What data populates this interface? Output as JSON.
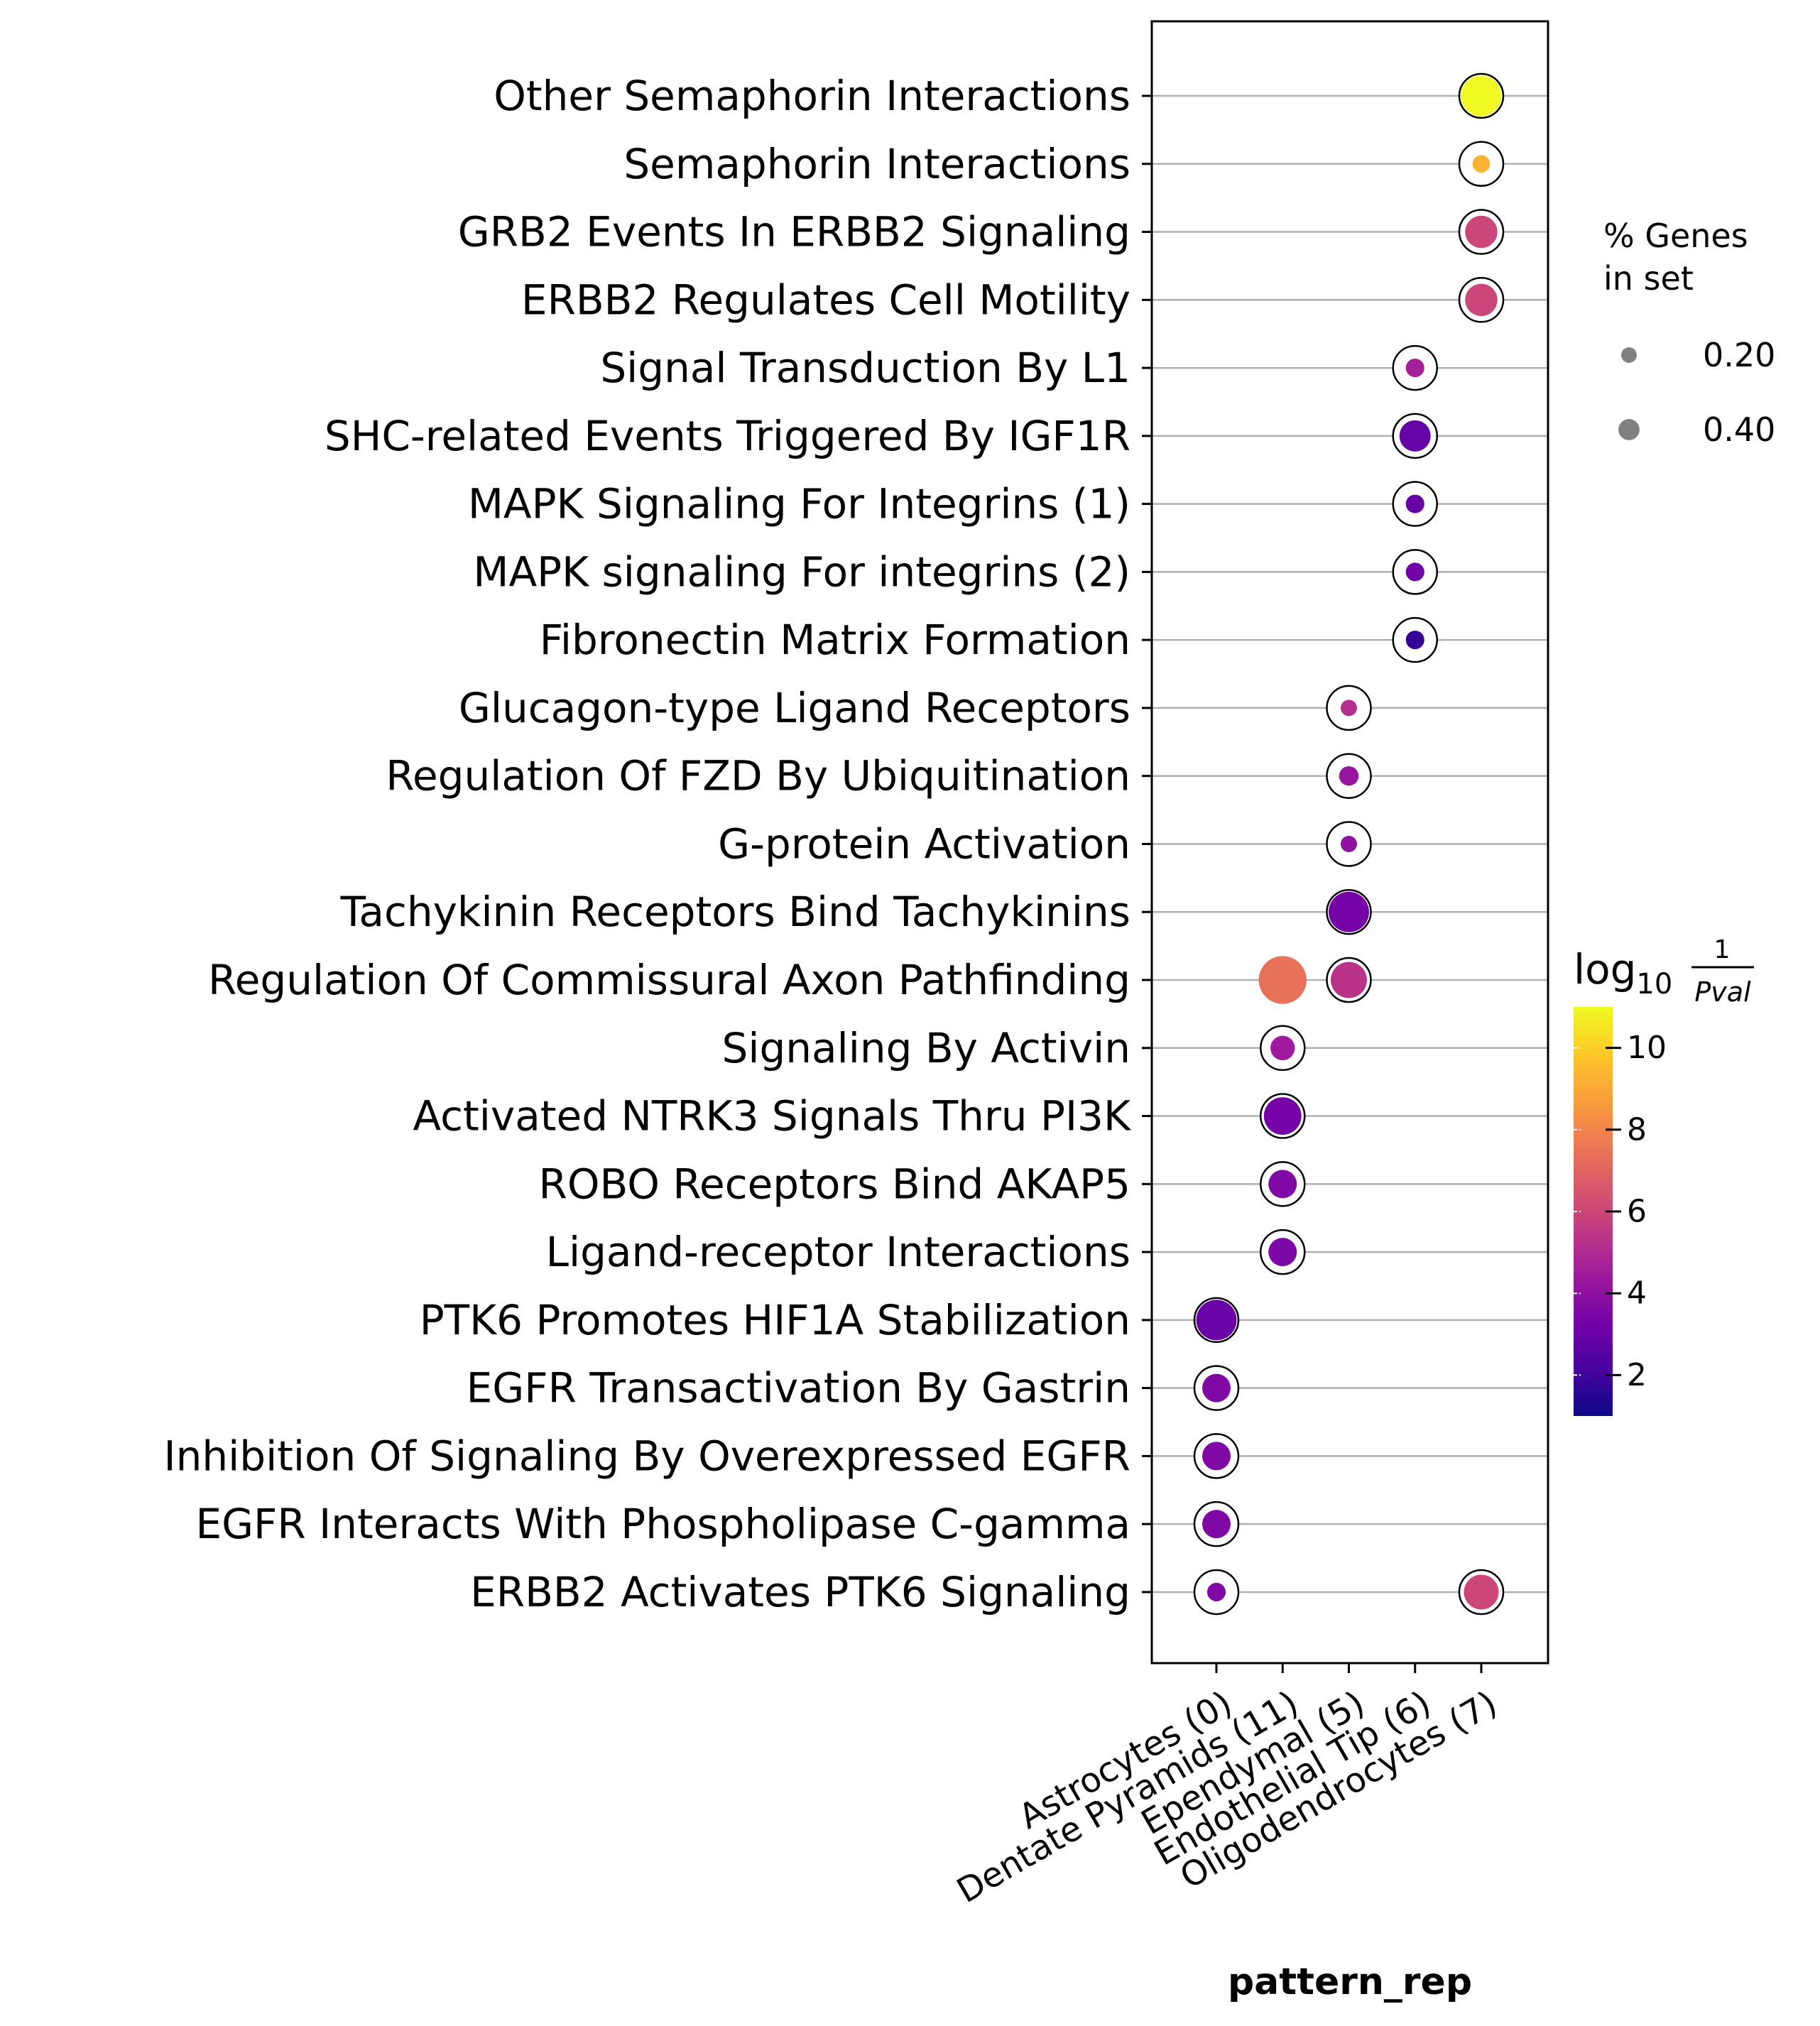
{
  "chart_data": {
    "type": "scatter",
    "xlabel": "pattern_rep",
    "x_categories": [
      "Astrocytes (0)",
      "Dentate Pyramids (11)",
      "Ependymal (5)",
      "Endothelial Tip (6)",
      "Oligodendrocytes (7)"
    ],
    "y_categories": [
      "Other Semaphorin Interactions",
      "Semaphorin Interactions",
      "GRB2 Events In ERBB2 Signaling",
      "ERBB2 Regulates Cell Motility",
      "Signal Transduction By L1",
      "SHC-related Events Triggered By IGF1R",
      "MAPK Signaling For Integrins (1)",
      "MAPK signaling For integrins (2)",
      "Fibronectin Matrix Formation",
      "Glucagon-type Ligand Receptors",
      "Regulation Of FZD By Ubiquitination",
      "G-protein Activation",
      "Tachykinin Receptors Bind Tachykinins",
      "Regulation Of Commissural Axon Pathfinding",
      "Signaling By Activin",
      "Activated NTRK3 Signals Thru PI3K",
      "ROBO Receptors Bind AKAP5",
      "Ligand-receptor Interactions",
      "PTK6 Promotes HIF1A Stabilization",
      "EGFR Transactivation By Gastrin",
      "Inhibition Of Signaling By Overexpressed EGFR",
      "EGFR Interacts With Phospholipase C-gamma",
      "ERBB2 Activates PTK6 Signaling"
    ],
    "points": [
      {
        "x": "Oligodendrocytes (7)",
        "y": "Other Semaphorin Interactions",
        "size": 0.45,
        "color": 11.0
      },
      {
        "x": "Oligodendrocytes (7)",
        "y": "Semaphorin Interactions",
        "size": 0.06,
        "color": 9.3
      },
      {
        "x": "Oligodendrocytes (7)",
        "y": "GRB2 Events In ERBB2 Signaling",
        "size": 0.27,
        "color": 6.0
      },
      {
        "x": "Oligodendrocytes (7)",
        "y": "ERBB2 Regulates Cell Motility",
        "size": 0.27,
        "color": 6.0
      },
      {
        "x": "Endothelial Tip (6)",
        "y": "Signal Transduction By L1",
        "size": 0.07,
        "color": 4.6
      },
      {
        "x": "Endothelial Tip (6)",
        "y": "SHC-related Events Triggered By IGF1R",
        "size": 0.25,
        "color": 2.9
      },
      {
        "x": "Endothelial Tip (6)",
        "y": "MAPK Signaling For Integrins (1)",
        "size": 0.07,
        "color": 3.0
      },
      {
        "x": "Endothelial Tip (6)",
        "y": "MAPK signaling For integrins (2)",
        "size": 0.07,
        "color": 3.2
      },
      {
        "x": "Endothelial Tip (6)",
        "y": "Fibronectin Matrix Formation",
        "size": 0.07,
        "color": 1.8
      },
      {
        "x": "Ependymal (5)",
        "y": "Glucagon-type Ligand Receptors",
        "size": 0.05,
        "color": 5.2
      },
      {
        "x": "Ependymal (5)",
        "y": "Regulation Of FZD By Ubiquitination",
        "size": 0.08,
        "color": 4.2
      },
      {
        "x": "Ependymal (5)",
        "y": "G-protein Activation",
        "size": 0.05,
        "color": 4.0
      },
      {
        "x": "Ependymal (5)",
        "y": "Tachykinin Receptors Bind Tachykinins",
        "size": 0.45,
        "color": 3.3
      },
      {
        "x": "Dentate Pyramids (11)",
        "y": "Regulation Of Commissural Axon Pathfinding",
        "size": 0.65,
        "color": 7.4
      },
      {
        "x": "Ependymal (5)",
        "y": "Regulation Of Commissural Axon Pathfinding",
        "size": 0.35,
        "color": 5.3
      },
      {
        "x": "Dentate Pyramids (11)",
        "y": "Signaling By Activin",
        "size": 0.14,
        "color": 4.4
      },
      {
        "x": "Dentate Pyramids (11)",
        "y": "Activated NTRK3 Signals Thru PI3K",
        "size": 0.38,
        "color": 3.3
      },
      {
        "x": "Dentate Pyramids (11)",
        "y": "ROBO Receptors Bind AKAP5",
        "size": 0.2,
        "color": 3.6
      },
      {
        "x": "Dentate Pyramids (11)",
        "y": "Ligand-receptor Interactions",
        "size": 0.2,
        "color": 3.5
      },
      {
        "x": "Astrocytes (0)",
        "y": "PTK6 Promotes HIF1A Stabilization",
        "size": 0.45,
        "color": 3.0
      },
      {
        "x": "Astrocytes (0)",
        "y": "EGFR Transactivation By Gastrin",
        "size": 0.2,
        "color": 3.6
      },
      {
        "x": "Astrocytes (0)",
        "y": "Inhibition Of Signaling By Overexpressed EGFR",
        "size": 0.2,
        "color": 3.6
      },
      {
        "x": "Astrocytes (0)",
        "y": "EGFR Interacts With Phospholipase C-gamma",
        "size": 0.2,
        "color": 3.6
      },
      {
        "x": "Astrocytes (0)",
        "y": "ERBB2 Activates PTK6 Signaling",
        "size": 0.07,
        "color": 3.6
      },
      {
        "x": "Oligodendrocytes (7)",
        "y": "ERBB2 Activates PTK6 Signaling",
        "size": 0.32,
        "color": 6.0
      }
    ],
    "size_legend": {
      "title_line1": "% Genes",
      "title_line2": "in set",
      "entries": [
        {
          "value": 0.2,
          "label": "0.20"
        },
        {
          "value": 0.4,
          "label": "0.40"
        }
      ]
    },
    "colorbar": {
      "title": {
        "base": "log",
        "sub": "10",
        "numerator": "1",
        "denominator": "Pval"
      },
      "range": [
        1,
        11
      ],
      "ticks": [
        2,
        4,
        6,
        8,
        10
      ],
      "tick_labels": [
        "2",
        "4",
        "6",
        "8",
        "10"
      ],
      "colormap": "plasma",
      "stops": [
        "#0d0887",
        "#46039f",
        "#7201a8",
        "#9c179e",
        "#bd3786",
        "#d8576b",
        "#ed7953",
        "#fb9f3a",
        "#fdca26",
        "#f0f921"
      ]
    },
    "grid": "horizontal",
    "outline_ring": true
  }
}
